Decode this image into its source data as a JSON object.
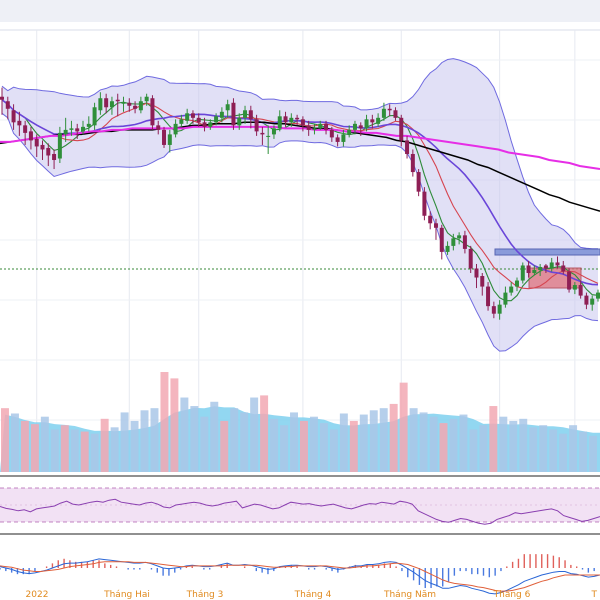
{
  "chart_data": {
    "type": "candlestick",
    "x_labels": [
      "2022",
      "Tháng Hai",
      "Tháng 3",
      "Tháng 4",
      "Tháng Năm",
      "Tháng 6",
      "T"
    ],
    "price": {
      "ohlc": [
        [
          150,
          148,
          138,
          156
        ],
        [
          147,
          142,
          135,
          150
        ],
        [
          141,
          133,
          128,
          145
        ],
        [
          134,
          131,
          124,
          140
        ],
        [
          131,
          126,
          118,
          134
        ],
        [
          127,
          121,
          115,
          130
        ],
        [
          122,
          117,
          110,
          125
        ],
        [
          118,
          115,
          108,
          121
        ],
        [
          116,
          111,
          104,
          119
        ],
        [
          112,
          108,
          102,
          115
        ],
        [
          109,
          126,
          106,
          130
        ],
        [
          125,
          128,
          120,
          136
        ],
        [
          128,
          129,
          124,
          134
        ],
        [
          129,
          127,
          122,
          132
        ],
        [
          127,
          130,
          125,
          134
        ],
        [
          130,
          132,
          127,
          137
        ],
        [
          131,
          143,
          128,
          146
        ],
        [
          141,
          149,
          138,
          153
        ],
        [
          149,
          143,
          139,
          152
        ],
        [
          143,
          147,
          138,
          150
        ],
        [
          148,
          147,
          137,
          152
        ],
        [
          146,
          146,
          140,
          150
        ],
        [
          146,
          144,
          140,
          149
        ],
        [
          144,
          142,
          139,
          147
        ],
        [
          141,
          147,
          139,
          150
        ],
        [
          147,
          150,
          144,
          152
        ],
        [
          149,
          131,
          128,
          151
        ],
        [
          131,
          128,
          125,
          134
        ],
        [
          128,
          118,
          116,
          130
        ],
        [
          118,
          125,
          113,
          128
        ],
        [
          125,
          132,
          123,
          135
        ],
        [
          132,
          135,
          130,
          138
        ],
        [
          134,
          139,
          132,
          142
        ],
        [
          139,
          136,
          132,
          141
        ],
        [
          136,
          133,
          130,
          139
        ],
        [
          133,
          130,
          127,
          136
        ],
        [
          130,
          133,
          128,
          135
        ],
        [
          133,
          137,
          131,
          139
        ],
        [
          136,
          140,
          133,
          143
        ],
        [
          141,
          145,
          136,
          148
        ],
        [
          146,
          131,
          128,
          149
        ],
        [
          131,
          136,
          128,
          139
        ],
        [
          136,
          141,
          132,
          144
        ],
        [
          141,
          135,
          129,
          144
        ],
        [
          135,
          127,
          124,
          138
        ],
        [
          126,
          125,
          118,
          130
        ],
        [
          124,
          124,
          112,
          131
        ],
        [
          125,
          129,
          122,
          131
        ],
        [
          129,
          137,
          127,
          141
        ],
        [
          137,
          133,
          130,
          140
        ],
        [
          133,
          136,
          130,
          139
        ],
        [
          136,
          135,
          131,
          138
        ],
        [
          135,
          131,
          127,
          137
        ],
        [
          131,
          128,
          124,
          134
        ],
        [
          128,
          129,
          125,
          132
        ],
        [
          129,
          132,
          128,
          134
        ],
        [
          132,
          128,
          125,
          134
        ],
        [
          128,
          123,
          120,
          130
        ],
        [
          123,
          120,
          117,
          125
        ],
        [
          120,
          125,
          117,
          128
        ],
        [
          125,
          128,
          123,
          131
        ],
        [
          128,
          132,
          125,
          134
        ],
        [
          131,
          129,
          124,
          133
        ],
        [
          129,
          135,
          127,
          138
        ],
        [
          135,
          133,
          129,
          138
        ],
        [
          132,
          136,
          130,
          139
        ],
        [
          136,
          142,
          134,
          146
        ],
        [
          142,
          141,
          137,
          145
        ],
        [
          141,
          136,
          134,
          143
        ],
        [
          136,
          121,
          117,
          138
        ],
        [
          121,
          112,
          109,
          124
        ],
        [
          112,
          100,
          97,
          115
        ],
        [
          100,
          87,
          84,
          102
        ],
        [
          87,
          71,
          68,
          90
        ],
        [
          71,
          66,
          62,
          74
        ],
        [
          66,
          63,
          55,
          69
        ],
        [
          63,
          47,
          42,
          65
        ],
        [
          47,
          51,
          45,
          54
        ],
        [
          51,
          56,
          48,
          59
        ],
        [
          56,
          58,
          52,
          60
        ],
        [
          58,
          49,
          46,
          61
        ],
        [
          49,
          36,
          33,
          51
        ],
        [
          36,
          30,
          23,
          39
        ],
        [
          31,
          24,
          18,
          33
        ],
        [
          24,
          11,
          8,
          27
        ],
        [
          11,
          6,
          3,
          14
        ],
        [
          6,
          12,
          2,
          15
        ],
        [
          12,
          20,
          10,
          24
        ],
        [
          20,
          24,
          18,
          27
        ],
        [
          24,
          28,
          21,
          30
        ],
        [
          28,
          38,
          26,
          40
        ],
        [
          38,
          33,
          30,
          41
        ],
        [
          33,
          35,
          32,
          38
        ],
        [
          35,
          37,
          31,
          39
        ],
        [
          38,
          36,
          33,
          39
        ],
        [
          36,
          40,
          34,
          43
        ],
        [
          40,
          38,
          36,
          44
        ],
        [
          38,
          34,
          32,
          41
        ],
        [
          34,
          22,
          20,
          36
        ],
        [
          22,
          25,
          19,
          27
        ],
        [
          25,
          18,
          16,
          28
        ],
        [
          18,
          12,
          9,
          20
        ],
        [
          12,
          16,
          8,
          18
        ],
        [
          16,
          20,
          14,
          22
        ]
      ]
    },
    "moving_averages": [
      {
        "color": "#000000",
        "values": [
          119,
          120,
          121,
          122,
          123,
          124,
          125,
          125,
          125,
          126,
          127,
          127,
          128,
          128,
          128,
          128,
          129,
          129,
          130,
          131,
          131,
          132,
          132,
          132,
          133,
          133,
          133,
          132,
          132,
          131,
          130,
          129,
          129,
          128,
          127,
          126,
          125,
          124,
          123,
          121,
          120,
          118,
          116,
          114,
          112,
          110,
          108,
          105,
          103,
          100,
          97,
          94,
          91,
          88,
          85,
          83,
          80,
          78,
          76,
          74
        ]
      },
      {
        "color": "#e62ee6",
        "values": [
          120,
          120,
          121,
          122,
          123,
          124,
          124,
          125,
          126,
          127,
          127,
          128,
          128,
          129,
          129,
          129,
          129,
          129,
          129,
          130,
          130,
          130,
          130,
          130,
          130,
          130,
          130,
          130,
          129,
          129,
          129,
          128,
          128,
          128,
          127,
          127,
          126,
          126,
          125,
          124,
          124,
          123,
          122,
          121,
          120,
          119,
          118,
          117,
          116,
          115,
          113,
          112,
          111,
          110,
          108,
          107,
          106,
          104,
          103,
          102
        ]
      }
    ],
    "volume": [
      [
        60,
        "#f2a8b3"
      ],
      [
        55,
        "#a9c7e8"
      ],
      [
        48,
        "#f2a8b3"
      ],
      [
        45,
        "#f2a8b3"
      ],
      [
        52,
        "#a9c7e8"
      ],
      [
        40,
        "#a9c7e8"
      ],
      [
        44,
        "#f2a8b3"
      ],
      [
        40,
        "#a9c7e8"
      ],
      [
        38,
        "#f2a8b3"
      ],
      [
        36,
        "#a9c7e8"
      ],
      [
        50,
        "#f2a8b3"
      ],
      [
        42,
        "#a9c7e8"
      ],
      [
        56,
        "#a9c7e8"
      ],
      [
        48,
        "#a9c7e8"
      ],
      [
        58,
        "#a9c7e8"
      ],
      [
        60,
        "#a9c7e8"
      ],
      [
        94,
        "#f2a8b3"
      ],
      [
        88,
        "#f2a8b3"
      ],
      [
        70,
        "#a9c7e8"
      ],
      [
        62,
        "#a9c7e8"
      ],
      [
        52,
        "#a9c7e8"
      ],
      [
        66,
        "#a9c7e8"
      ],
      [
        48,
        "#f2a8b3"
      ],
      [
        60,
        "#a9c7e8"
      ],
      [
        56,
        "#a9c7e8"
      ],
      [
        70,
        "#a9c7e8"
      ],
      [
        72,
        "#f2a8b3"
      ],
      [
        50,
        "#a9c7e8"
      ],
      [
        44,
        "#a9c7e8"
      ],
      [
        56,
        "#a9c7e8"
      ],
      [
        48,
        "#f2a8b3"
      ],
      [
        52,
        "#a9c7e8"
      ],
      [
        46,
        "#a9c7e8"
      ],
      [
        40,
        "#a9c7e8"
      ],
      [
        55,
        "#a9c7e8"
      ],
      [
        48,
        "#f2a8b3"
      ],
      [
        54,
        "#a9c7e8"
      ],
      [
        58,
        "#a9c7e8"
      ],
      [
        60,
        "#a9c7e8"
      ],
      [
        64,
        "#f2a8b3"
      ],
      [
        84,
        "#f2a8b3"
      ],
      [
        60,
        "#a9c7e8"
      ],
      [
        56,
        "#a9c7e8"
      ],
      [
        52,
        "#a9c7e8"
      ],
      [
        46,
        "#f2a8b3"
      ],
      [
        50,
        "#a9c7e8"
      ],
      [
        54,
        "#a9c7e8"
      ],
      [
        40,
        "#a9c7e8"
      ],
      [
        44,
        "#a9c7e8"
      ],
      [
        62,
        "#f2a8b3"
      ],
      [
        52,
        "#a9c7e8"
      ],
      [
        48,
        "#a9c7e8"
      ],
      [
        50,
        "#a9c7e8"
      ],
      [
        42,
        "#a9c7e8"
      ],
      [
        44,
        "#a9c7e8"
      ],
      [
        40,
        "#a9c7e8"
      ],
      [
        36,
        "#a9c7e8"
      ],
      [
        44,
        "#a9c7e8"
      ],
      [
        38,
        "#a9c7e8"
      ],
      [
        34,
        "#a9c7e8"
      ]
    ],
    "rsi": [
      49,
      45,
      43,
      40,
      42,
      38,
      44,
      46,
      48,
      50,
      56,
      60,
      54,
      52,
      55,
      58,
      60,
      58,
      62,
      64,
      58,
      56,
      54,
      52,
      56,
      58,
      54,
      48,
      46,
      52,
      54,
      56,
      58,
      56,
      52,
      50,
      52,
      56,
      58,
      60,
      46,
      50,
      54,
      52,
      48,
      44,
      46,
      52,
      58,
      56,
      54,
      55,
      52,
      50,
      52,
      54,
      50,
      46,
      44,
      48,
      52,
      55,
      54,
      58,
      56,
      54,
      60,
      58,
      54,
      40,
      34,
      28,
      22,
      18,
      16,
      20,
      24,
      22,
      18,
      14,
      12,
      14,
      22,
      26,
      30,
      36,
      34,
      36,
      38,
      40,
      42,
      44,
      40,
      30,
      26,
      22,
      18,
      20,
      24,
      28
    ],
    "macd": {
      "line": [
        0.2,
        0.0,
        -0.2,
        -0.5,
        -0.7,
        -0.8,
        -0.7,
        -0.5,
        -0.3,
        0.0,
        0.3,
        0.6,
        0.7,
        0.7,
        0.8,
        0.9,
        1.1,
        1.3,
        1.2,
        1.1,
        1.0,
        0.9,
        0.8,
        0.7,
        0.7,
        0.8,
        0.6,
        0.3,
        0.0,
        -0.1,
        0.0,
        0.1,
        0.3,
        0.4,
        0.3,
        0.2,
        0.2,
        0.3,
        0.5,
        0.7,
        0.4,
        0.4,
        0.5,
        0.4,
        0.2,
        0.0,
        -0.2,
        -0.1,
        0.2,
        0.3,
        0.4,
        0.4,
        0.3,
        0.2,
        0.2,
        0.3,
        0.2,
        0.0,
        -0.2,
        -0.1,
        0.1,
        0.3,
        0.3,
        0.5,
        0.5,
        0.6,
        0.8,
        0.9,
        0.8,
        0.4,
        -0.1,
        -0.6,
        -1.2,
        -1.8,
        -2.2,
        -2.5,
        -2.9,
        -2.9,
        -2.7,
        -2.5,
        -2.6,
        -2.9,
        -3.1,
        -3.3,
        -3.6,
        -3.7,
        -3.5,
        -3.2,
        -2.8,
        -2.4,
        -1.9,
        -1.6,
        -1.3,
        -1.0,
        -0.8,
        -0.6,
        -0.5,
        -0.5,
        -0.8,
        -0.9,
        -1.1,
        -1.3,
        -1.2,
        -1.0
      ],
      "signal": [
        0.3,
        0.2,
        0.1,
        -0.1,
        -0.3,
        -0.4,
        -0.5,
        -0.5,
        -0.4,
        -0.3,
        -0.2,
        0.0,
        0.2,
        0.3,
        0.4,
        0.5,
        0.6,
        0.8,
        0.9,
        0.9,
        0.9,
        0.9,
        0.9,
        0.8,
        0.8,
        0.8,
        0.7,
        0.6,
        0.5,
        0.4,
        0.3,
        0.2,
        0.2,
        0.3,
        0.3,
        0.3,
        0.3,
        0.3,
        0.3,
        0.4,
        0.4,
        0.4,
        0.4,
        0.4,
        0.4,
        0.3,
        0.2,
        0.1,
        0.1,
        0.2,
        0.2,
        0.3,
        0.3,
        0.3,
        0.3,
        0.3,
        0.3,
        0.2,
        0.1,
        0.0,
        0.0,
        0.1,
        0.2,
        0.3,
        0.3,
        0.4,
        0.5,
        0.6,
        0.7,
        0.6,
        0.5,
        0.2,
        -0.1,
        -0.5,
        -0.9,
        -1.3,
        -1.7,
        -2.0,
        -2.2,
        -2.3,
        -2.4,
        -2.5,
        -2.7,
        -2.8,
        -3.0,
        -3.2,
        -3.3,
        -3.3,
        -3.2,
        -3.0,
        -2.8,
        -2.5,
        -2.2,
        -1.9,
        -1.7,
        -1.4,
        -1.2,
        -1.0,
        -1.0,
        -1.0,
        -1.0,
        -1.0,
        -1.0,
        -1.0
      ]
    }
  }
}
